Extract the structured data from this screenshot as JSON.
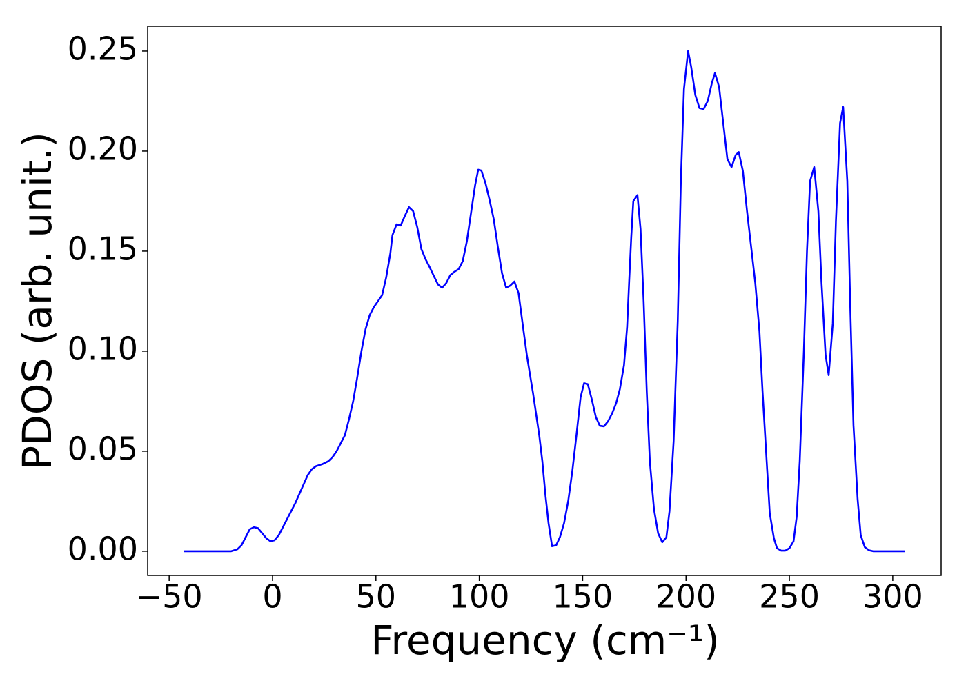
{
  "chart_data": {
    "type": "line",
    "xlabel": "Frequency (cm⁻¹)",
    "ylabel": "PDOS (arb. unit.)",
    "xlim": [
      -60.4,
      323.4
    ],
    "ylim": [
      -0.0121,
      0.2624
    ],
    "xticks": [
      {
        "value": -50,
        "label": "−50"
      },
      0,
      50,
      100,
      150,
      200,
      250,
      300
    ],
    "yticks": [
      {
        "value": 0,
        "label": "0.00"
      },
      {
        "value": 0.05,
        "label": "0.05"
      },
      {
        "value": 0.1,
        "label": "0.10"
      },
      {
        "value": 0.15,
        "label": "0.15"
      },
      {
        "value": 0.2,
        "label": "0.20"
      },
      {
        "value": 0.25,
        "label": "0.25"
      }
    ],
    "grid": false,
    "series": [
      {
        "color": "#0000ff",
        "x": [
          -43,
          -20,
          -17,
          -15,
          -13,
          -11,
          -9,
          -7,
          -5,
          -3,
          -1,
          1,
          3,
          5,
          8,
          11,
          14,
          17,
          19,
          21,
          24,
          27,
          29,
          31,
          33,
          35,
          37,
          39,
          41,
          43,
          45,
          47,
          49,
          51,
          53,
          55,
          57,
          58,
          60,
          62,
          64,
          66,
          68,
          70,
          72,
          74,
          76,
          78,
          80,
          82,
          84,
          86,
          88,
          90,
          92,
          94,
          96,
          98,
          99.5,
          101,
          103,
          105,
          107,
          109,
          111,
          113,
          115,
          117,
          119,
          121,
          123,
          126,
          129,
          130.5,
          132,
          133.5,
          135.2,
          137.2,
          139,
          141,
          143,
          145,
          147,
          149,
          150.7,
          152.5,
          154.4,
          156.4,
          158.3,
          160.3,
          162.3,
          164.3,
          166.2,
          168,
          170,
          171.5,
          172.5,
          173.5,
          174.5,
          176.5,
          178,
          179.5,
          181,
          182.5,
          184.5,
          186.5,
          188.5,
          190.5,
          192,
          194,
          196,
          197.5,
          199,
          201,
          202.5,
          204.5,
          206.5,
          208.5,
          210.5,
          212.5,
          214,
          216,
          218,
          220,
          222,
          224,
          225.5,
          227.5,
          229.5,
          231.5,
          233.5,
          235.5,
          237,
          239,
          240.5,
          242.5,
          244,
          246,
          248,
          250,
          252,
          253.5,
          255,
          257,
          258.5,
          260,
          262,
          264,
          265.5,
          267.5,
          269,
          271,
          272.5,
          274.5,
          276,
          278,
          279.5,
          281,
          283,
          284.5,
          286.5,
          288.5,
          290.5,
          306
        ],
        "values": [
          0,
          0,
          0.001,
          0.003,
          0.007,
          0.011,
          0.012,
          0.0115,
          0.009,
          0.0065,
          0.005,
          0.0055,
          0.008,
          0.012,
          0.018,
          0.024,
          0.031,
          0.038,
          0.041,
          0.0425,
          0.0435,
          0.045,
          0.047,
          0.05,
          0.054,
          0.058,
          0.066,
          0.075,
          0.087,
          0.1,
          0.111,
          0.118,
          0.122,
          0.125,
          0.128,
          0.137,
          0.149,
          0.158,
          0.1634,
          0.1628,
          0.1676,
          0.172,
          0.17,
          0.162,
          0.151,
          0.146,
          0.142,
          0.1376,
          0.1334,
          0.1317,
          0.134,
          0.138,
          0.1397,
          0.141,
          0.145,
          0.155,
          0.169,
          0.183,
          0.1907,
          0.1903,
          0.184,
          0.1755,
          0.166,
          0.152,
          0.139,
          0.1317,
          0.1328,
          0.1348,
          0.129,
          0.1134,
          0.098,
          0.079,
          0.058,
          0.045,
          0.028,
          0.014,
          0.0025,
          0.003,
          0.007,
          0.014,
          0.025,
          0.04,
          0.058,
          0.077,
          0.084,
          0.0835,
          0.076,
          0.067,
          0.0627,
          0.0624,
          0.065,
          0.069,
          0.074,
          0.081,
          0.093,
          0.112,
          0.135,
          0.157,
          0.175,
          0.178,
          0.161,
          0.125,
          0.08,
          0.045,
          0.021,
          0.009,
          0.0045,
          0.007,
          0.02,
          0.055,
          0.115,
          0.185,
          0.231,
          0.25,
          0.242,
          0.228,
          0.2215,
          0.221,
          0.225,
          0.234,
          0.239,
          0.232,
          0.214,
          0.196,
          0.192,
          0.198,
          0.1995,
          0.19,
          0.17,
          0.152,
          0.134,
          0.11,
          0.08,
          0.045,
          0.019,
          0.0065,
          0.0015,
          0.0003,
          0.0003,
          0.0015,
          0.005,
          0.017,
          0.045,
          0.1,
          0.15,
          0.185,
          0.192,
          0.17,
          0.135,
          0.098,
          0.088,
          0.114,
          0.165,
          0.214,
          0.222,
          0.185,
          0.12,
          0.063,
          0.026,
          0.008,
          0.002,
          0.0005,
          0,
          0
        ]
      }
    ]
  }
}
